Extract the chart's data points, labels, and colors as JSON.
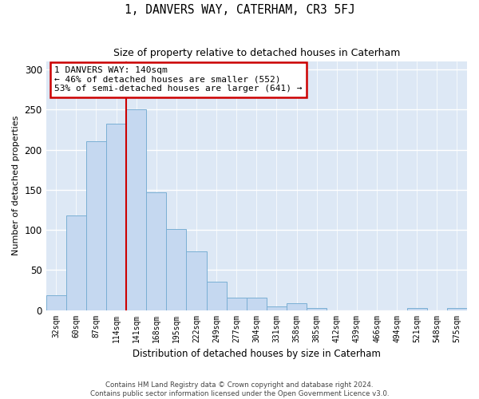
{
  "title": "1, DANVERS WAY, CATERHAM, CR3 5FJ",
  "subtitle": "Size of property relative to detached houses in Caterham",
  "xlabel": "Distribution of detached houses by size in Caterham",
  "ylabel": "Number of detached properties",
  "categories": [
    "32sqm",
    "60sqm",
    "87sqm",
    "114sqm",
    "141sqm",
    "168sqm",
    "195sqm",
    "222sqm",
    "249sqm",
    "277sqm",
    "304sqm",
    "331sqm",
    "358sqm",
    "385sqm",
    "412sqm",
    "439sqm",
    "466sqm",
    "494sqm",
    "521sqm",
    "548sqm",
    "575sqm"
  ],
  "values": [
    18,
    118,
    210,
    232,
    250,
    147,
    101,
    73,
    35,
    15,
    15,
    5,
    9,
    3,
    0,
    0,
    0,
    0,
    3,
    0,
    3
  ],
  "bar_color": "#c5d8f0",
  "bar_edge_color": "#7aafd4",
  "vline_bin_index": 4,
  "annotation_title": "1 DANVERS WAY: 140sqm",
  "annotation_line2": "← 46% of detached houses are smaller (552)",
  "annotation_line3": "53% of semi-detached houses are larger (641) →",
  "vline_color": "#cc0000",
  "annotation_box_edgecolor": "#cc0000",
  "background_color": "#dde8f5",
  "footer_line1": "Contains HM Land Registry data © Crown copyright and database right 2024.",
  "footer_line2": "Contains public sector information licensed under the Open Government Licence v3.0.",
  "ylim": [
    0,
    310
  ],
  "yticks": [
    0,
    50,
    100,
    150,
    200,
    250,
    300
  ]
}
